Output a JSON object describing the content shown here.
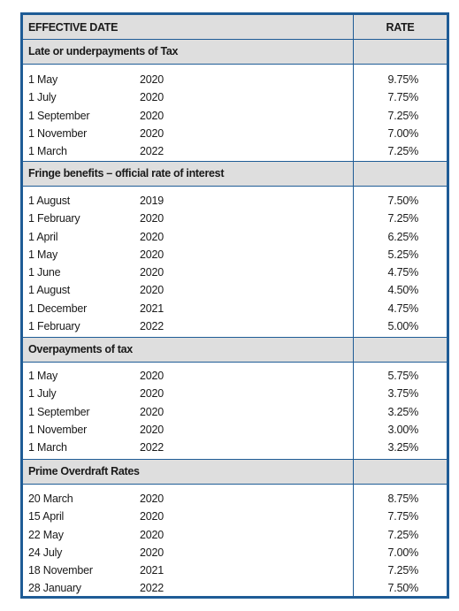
{
  "header": {
    "effective_date": "EFFECTIVE DATE",
    "rate": "RATE"
  },
  "sections": [
    {
      "title": "Late or underpayments of Tax",
      "rows": [
        {
          "date": "1 May",
          "year": "2020",
          "rate": "9.75%"
        },
        {
          "date": "1 July",
          "year": "2020",
          "rate": "7.75%"
        },
        {
          "date": "1 September",
          "year": "2020",
          "rate": "7.25%"
        },
        {
          "date": "1 November",
          "year": "2020",
          "rate": "7.00%"
        },
        {
          "date": "1 March",
          "year": "2022",
          "rate": "7.25%"
        }
      ]
    },
    {
      "title": "Fringe benefits – official rate of interest",
      "rows": [
        {
          "date": "1 August",
          "year": "2019",
          "rate": "7.50%"
        },
        {
          "date": "1 February",
          "year": "2020",
          "rate": "7.25%"
        },
        {
          "date": "1 April",
          "year": "2020",
          "rate": "6.25%"
        },
        {
          "date": "1 May",
          "year": "2020",
          "rate": "5.25%"
        },
        {
          "date": "1 June",
          "year": "2020",
          "rate": "4.75%"
        },
        {
          "date": "1 August",
          "year": "2020",
          "rate": "4.50%"
        },
        {
          "date": "1 December",
          "year": "2021",
          "rate": "4.75%"
        },
        {
          "date": "1 February",
          "year": "2022",
          "rate": "5.00%"
        }
      ]
    },
    {
      "title": "Overpayments of tax",
      "rows": [
        {
          "date": "1 May",
          "year": "2020",
          "rate": "5.75%"
        },
        {
          "date": "1 July",
          "year": "2020",
          "rate": "3.75%"
        },
        {
          "date": "1 September",
          "year": "2020",
          "rate": "3.25%"
        },
        {
          "date": "1 November",
          "year": "2020",
          "rate": "3.00%"
        },
        {
          "date": "1 March",
          "year": "2022",
          "rate": "3.25%"
        }
      ]
    },
    {
      "title": "Prime Overdraft Rates",
      "rows": [
        {
          "date": "20 March",
          "year": "2020",
          "rate": "8.75%"
        },
        {
          "date": "15 April",
          "year": "2020",
          "rate": "7.75%"
        },
        {
          "date": "22 May",
          "year": "2020",
          "rate": "7.25%"
        },
        {
          "date": "24 July",
          "year": "2020",
          "rate": "7.00%"
        },
        {
          "date": "18 November",
          "year": "2021",
          "rate": "7.25%"
        },
        {
          "date": "28 January",
          "year": "2022",
          "rate": "7.50%"
        }
      ]
    }
  ]
}
